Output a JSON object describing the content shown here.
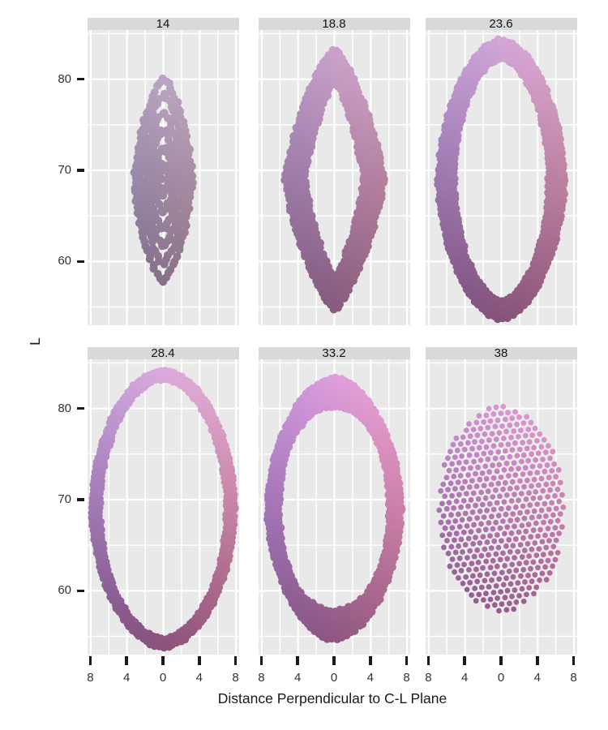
{
  "labels": {
    "x_title": "Distance Perpendicular to C-L Plane",
    "y_title": "L"
  },
  "style": {
    "background": "#FFFFFF",
    "panel_bg": "#E9E9E9",
    "grid_color": "#FFFFFF",
    "strip_bg": "#D9D9D9",
    "strip_text_color": "#141414",
    "tick_mark_color": "#1A1A1A",
    "tick_label_color": "#333333",
    "axis_title_color": "#1A1A1A"
  },
  "chart_data": {
    "type": "scatter",
    "title": "",
    "xlabel": "Distance Perpendicular to C-L Plane",
    "ylabel": "L",
    "facet_variable_values": [
      "14",
      "18.8",
      "23.6",
      "28.4",
      "33.2",
      "38"
    ],
    "x_ticks": [
      -8,
      -4,
      0,
      4,
      8
    ],
    "x_tick_labels": [
      "8",
      "4",
      "0",
      "4",
      "8"
    ],
    "y_ticks": [
      80,
      70,
      60
    ],
    "y_tick_labels": [
      "80",
      "70",
      "60"
    ],
    "xlim": [
      -8.35,
      8.35
    ],
    "ylim": [
      53.0,
      85.4
    ],
    "grid": {
      "x_lines_every": 2,
      "x_major_every": 4,
      "y_lines_every": 5,
      "y_major_every": 10,
      "y_line_min": 55,
      "y_line_max": 85
    },
    "legend": "none",
    "points_encoding": "each facet is a slice of a color solid at the chroma value shown in the strip; dots are drawn from the shape parameters below (data units), colored by bilinear blend of the corner colors",
    "facets": [
      {
        "label": "14",
        "row": 0,
        "col": 0,
        "kind": "filled",
        "center": [
          0,
          69
        ],
        "outer": {
          "a": 3.15,
          "b": 11.15,
          "p": 1.45
        },
        "inner": null,
        "dot_r": 5,
        "jitter": 0.3,
        "corner_colors": {
          "tl": "#B3A2C3",
          "tr": "#C2A7BF",
          "bl": "#7E6F90",
          "br": "#8F7284"
        }
      },
      {
        "label": "18.8",
        "row": 0,
        "col": 1,
        "kind": "ring",
        "center": [
          0,
          69
        ],
        "outer": {
          "a": 5.35,
          "b": 14.3,
          "p": 1.32
        },
        "inner": {
          "a": 3.3,
          "b": 10.95,
          "p": 1.25
        },
        "dot_r": 5,
        "jitter": 0.26,
        "corner_colors": {
          "tl": "#BE9ECD",
          "tr": "#D6A6C7",
          "bl": "#7A5982",
          "br": "#925D79"
        }
      },
      {
        "label": "23.6",
        "row": 0,
        "col": 2,
        "kind": "ring",
        "center": [
          0,
          69
        ],
        "outer": {
          "a": 6.9,
          "b": 15.3,
          "p": 1.75
        },
        "inner": {
          "a": 5.25,
          "b": 13.25,
          "p": 1.85
        },
        "dot_r": 5,
        "jitter": 0.22,
        "corner_colors": {
          "tl": "#C2A1DD",
          "tr": "#E3ABCF",
          "bl": "#764E80",
          "br": "#955875"
        }
      },
      {
        "label": "28.4",
        "row": 1,
        "col": 0,
        "kind": "ring",
        "center": [
          0,
          69
        ],
        "outer": {
          "a": 7.85,
          "b": 15.2,
          "p": 1.85
        },
        "inner": {
          "a": 7.0,
          "b": 14.2,
          "p": 1.9
        },
        "dot_r": 4.6,
        "jitter": 0.18,
        "corner_colors": {
          "tl": "#C7A5E3",
          "tr": "#EDAFD4",
          "bl": "#794D84",
          "br": "#9D5875"
        }
      },
      {
        "label": "33.2",
        "row": 1,
        "col": 1,
        "kind": "ring",
        "center": [
          0,
          69
        ],
        "outer": {
          "a": 7.3,
          "b": 14.3,
          "p": 1.8
        },
        "inner": {
          "a": 6.1,
          "b": 11.2,
          "p": 2.15
        },
        "dot_r": 5,
        "jitter": 0.22,
        "corner_colors": {
          "tl": "#C997E3",
          "tr": "#F2A3D4",
          "bl": "#7E5288",
          "br": "#A15E7D"
        }
      },
      {
        "label": "38",
        "row": 1,
        "col": 2,
        "kind": "lattice",
        "center": [
          0,
          69
        ],
        "outer": {
          "a": 6.9,
          "b": 11.25,
          "p": 2
        },
        "inner": null,
        "lattice": {
          "step": 0.8,
          "row_h": 0.693,
          "rot_deg": 7
        },
        "dot_r": 3.4,
        "jitter": 0.07,
        "corner_colors": {
          "tl": "#C98FD3",
          "tr": "#E89CD1",
          "bl": "#8A5690",
          "br": "#A9618B"
        }
      }
    ]
  }
}
